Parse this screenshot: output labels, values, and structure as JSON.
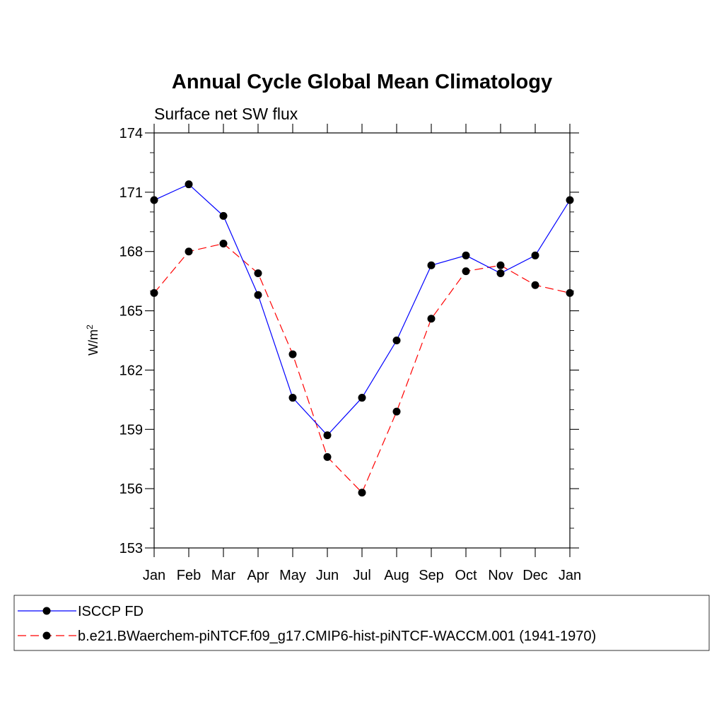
{
  "chart_data": {
    "type": "line",
    "title": "Annual Cycle Global Mean Climatology",
    "subtitle": "Surface net SW flux",
    "xlabel": "",
    "ylabel": "W/m",
    "ylabel_superscript": "2",
    "categories": [
      "Jan",
      "Feb",
      "Mar",
      "Apr",
      "May",
      "Jun",
      "Jul",
      "Aug",
      "Sep",
      "Oct",
      "Nov",
      "Dec",
      "Jan"
    ],
    "ylim": [
      153,
      174
    ],
    "yticks": [
      153,
      156,
      159,
      162,
      165,
      168,
      171,
      174
    ],
    "grid": false,
    "legend_position": "bottom",
    "series": [
      {
        "name": "ISCCP FD",
        "color": "#0000ff",
        "dash": "solid",
        "values": [
          170.6,
          171.4,
          169.8,
          165.8,
          160.6,
          158.7,
          160.6,
          163.5,
          167.3,
          167.8,
          166.9,
          167.8,
          170.6
        ]
      },
      {
        "name": "b.e21.BWaerchem-piNTCF.f09_g17.CMIP6-hist-piNTCF-WACCM.001 (1941-1970)",
        "color": "#ff0000",
        "dash": "dashed",
        "values": [
          165.9,
          168.0,
          168.4,
          166.9,
          162.8,
          157.6,
          155.8,
          159.9,
          164.6,
          167.0,
          167.3,
          166.3,
          165.9
        ]
      }
    ]
  }
}
